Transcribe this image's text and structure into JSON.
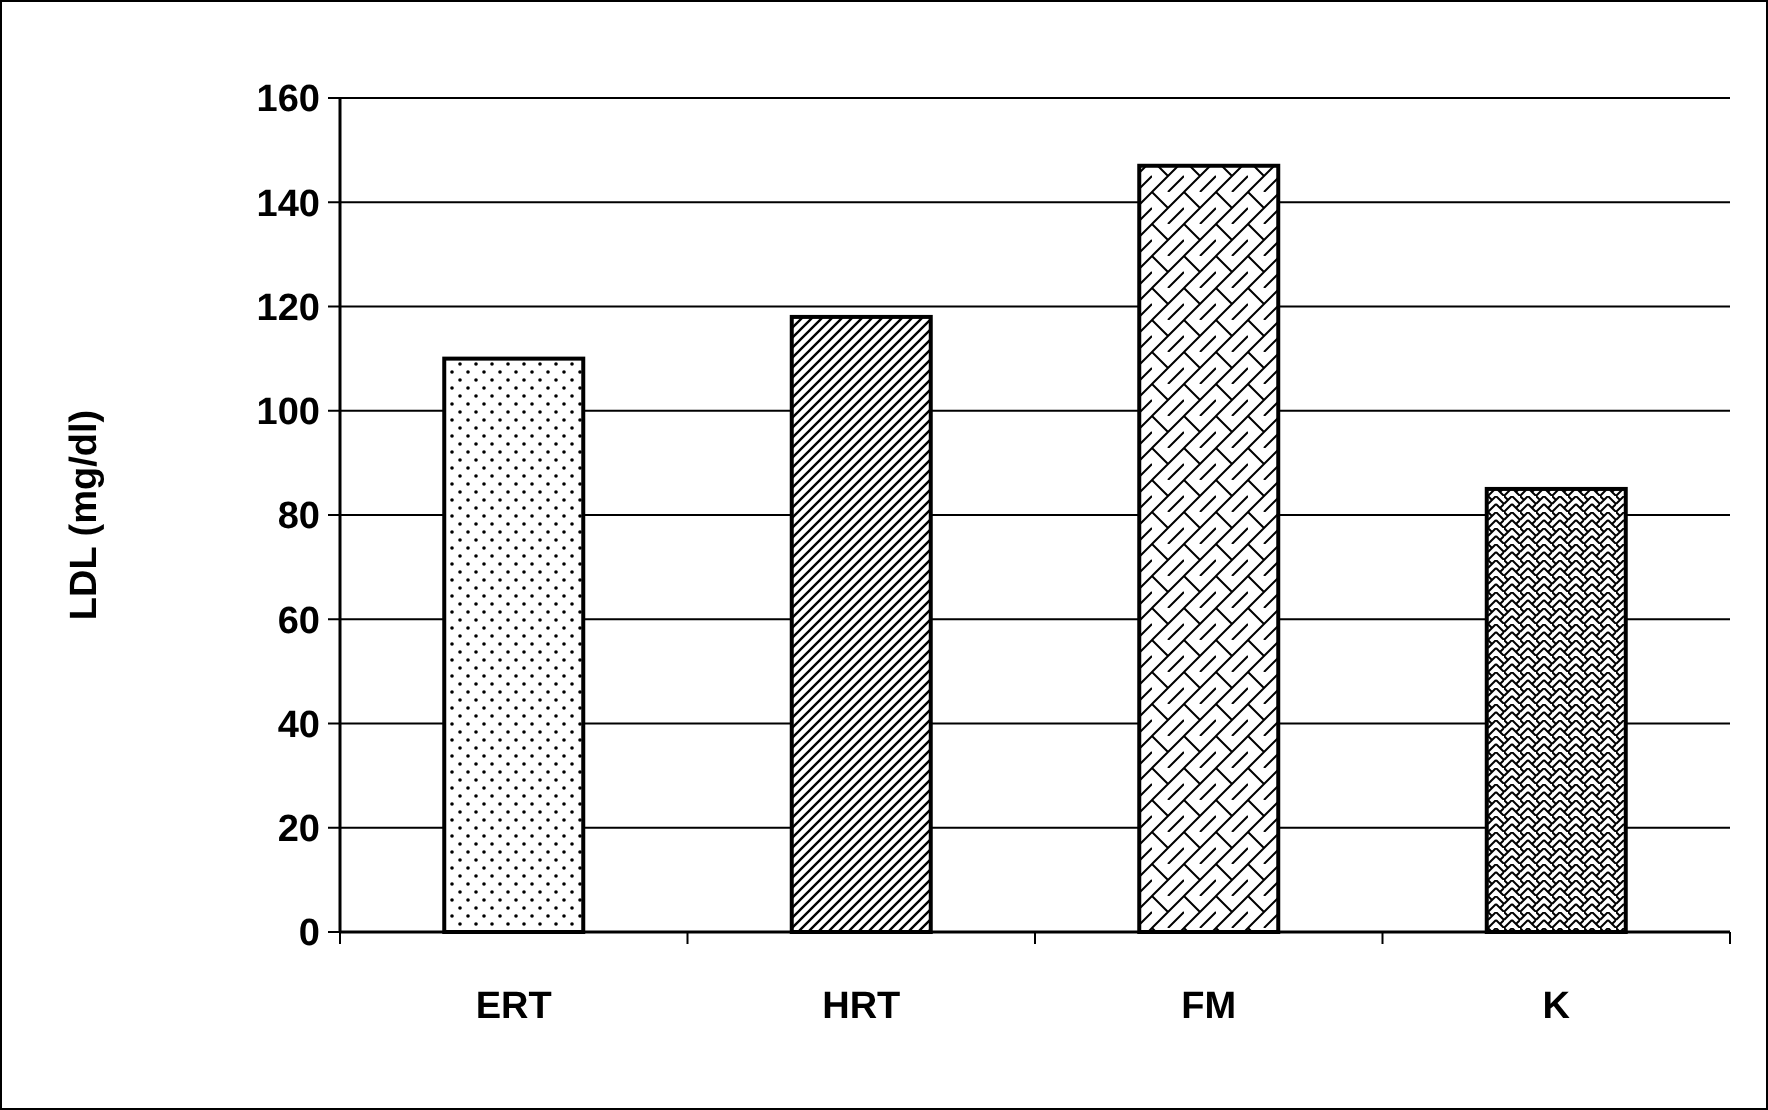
{
  "chart_data": {
    "type": "bar",
    "ylabel": "LDL (mg/dl)",
    "categories": [
      "ERT",
      "HRT",
      "FM",
      "K"
    ],
    "values": [
      110,
      118,
      147,
      85
    ],
    "color": "#000000",
    "ylim": [
      0,
      160
    ],
    "yticks": [
      0,
      20,
      40,
      60,
      80,
      100,
      120,
      140,
      160
    ],
    "grid": "y"
  }
}
